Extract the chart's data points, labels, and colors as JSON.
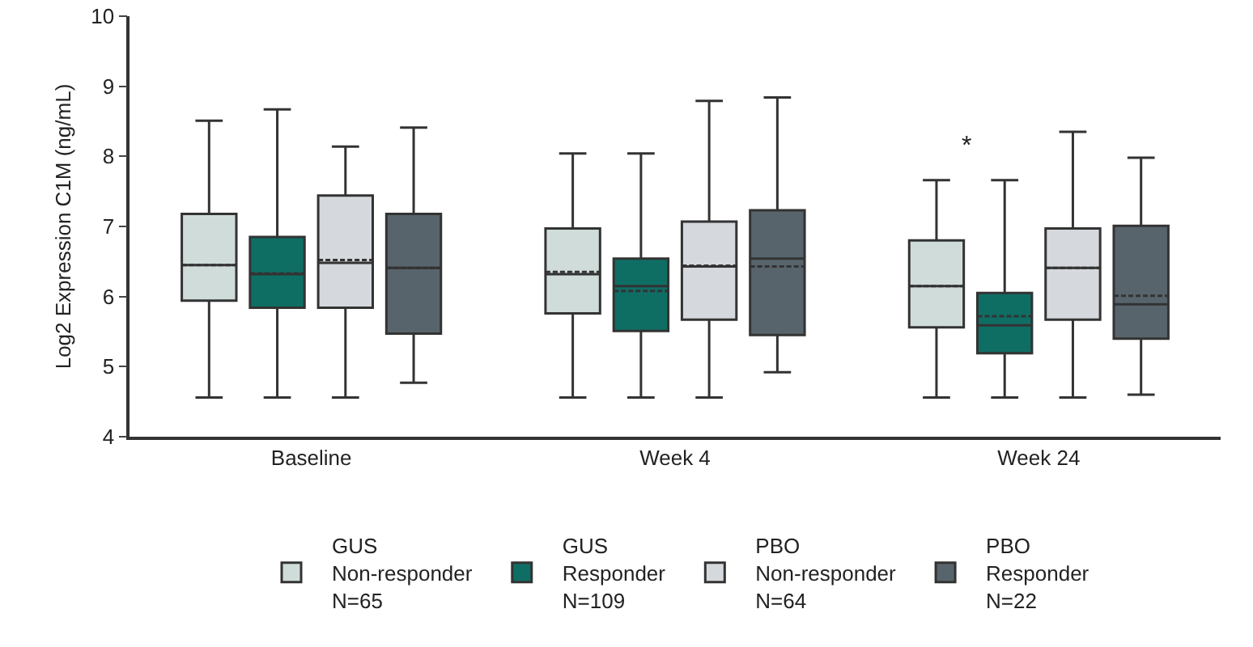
{
  "chart_data": {
    "type": "box",
    "ylabel": "Log2 Expression C1M (ng/mL)",
    "categories": [
      "Baseline",
      "Week 4",
      "Week 24"
    ],
    "ylim": [
      4,
      10
    ],
    "yticks": [
      4,
      5,
      6,
      7,
      8,
      9,
      10
    ],
    "grid": false,
    "legend": "bottom",
    "annotations": [
      "*"
    ],
    "series": [
      {
        "name": "GUS\nNon-responder\nN=65",
        "color": "#cfdcda",
        "boxes": [
          {
            "low": 4.56,
            "q1": 5.94,
            "median": 6.45,
            "q3": 7.18,
            "high": 8.51,
            "mean": 6.45
          },
          {
            "low": 4.56,
            "q1": 5.76,
            "median": 6.32,
            "q3": 6.97,
            "high": 8.04,
            "mean": 6.35
          },
          {
            "low": 4.56,
            "q1": 5.56,
            "median": 6.15,
            "q3": 6.8,
            "high": 7.66,
            "mean": 6.15
          }
        ]
      },
      {
        "name": "GUS\nResponder\nN=109",
        "color": "#0f6e64",
        "boxes": [
          {
            "low": 4.56,
            "q1": 5.84,
            "median": 6.32,
            "q3": 6.85,
            "high": 8.67,
            "mean": 6.33
          },
          {
            "low": 4.56,
            "q1": 5.51,
            "median": 6.15,
            "q3": 6.54,
            "high": 8.04,
            "mean": 6.08
          },
          {
            "low": 4.56,
            "q1": 5.19,
            "median": 5.59,
            "q3": 6.05,
            "high": 7.66,
            "mean": 5.72
          }
        ]
      },
      {
        "name": "PBO\nNon-responder\nN=64",
        "color": "#d5d8dc",
        "boxes": [
          {
            "low": 4.56,
            "q1": 5.84,
            "median": 6.48,
            "q3": 7.44,
            "high": 8.14,
            "mean": 6.52
          },
          {
            "low": 4.56,
            "q1": 5.67,
            "median": 6.43,
            "q3": 7.07,
            "high": 8.79,
            "mean": 6.44
          },
          {
            "low": 4.56,
            "q1": 5.67,
            "median": 6.41,
            "q3": 6.97,
            "high": 8.35,
            "mean": 6.41
          }
        ]
      },
      {
        "name": "PBO\nResponder\nN=22",
        "color": "#58646c",
        "boxes": [
          {
            "low": 4.77,
            "q1": 5.47,
            "median": 6.41,
            "q3": 7.18,
            "high": 8.41,
            "mean": 6.41
          },
          {
            "low": 4.92,
            "q1": 5.45,
            "median": 6.54,
            "q3": 7.23,
            "high": 8.84,
            "mean": 6.43
          },
          {
            "low": 4.6,
            "q1": 5.4,
            "median": 5.89,
            "q3": 7.01,
            "high": 7.98,
            "mean": 6.01
          }
        ]
      }
    ]
  }
}
